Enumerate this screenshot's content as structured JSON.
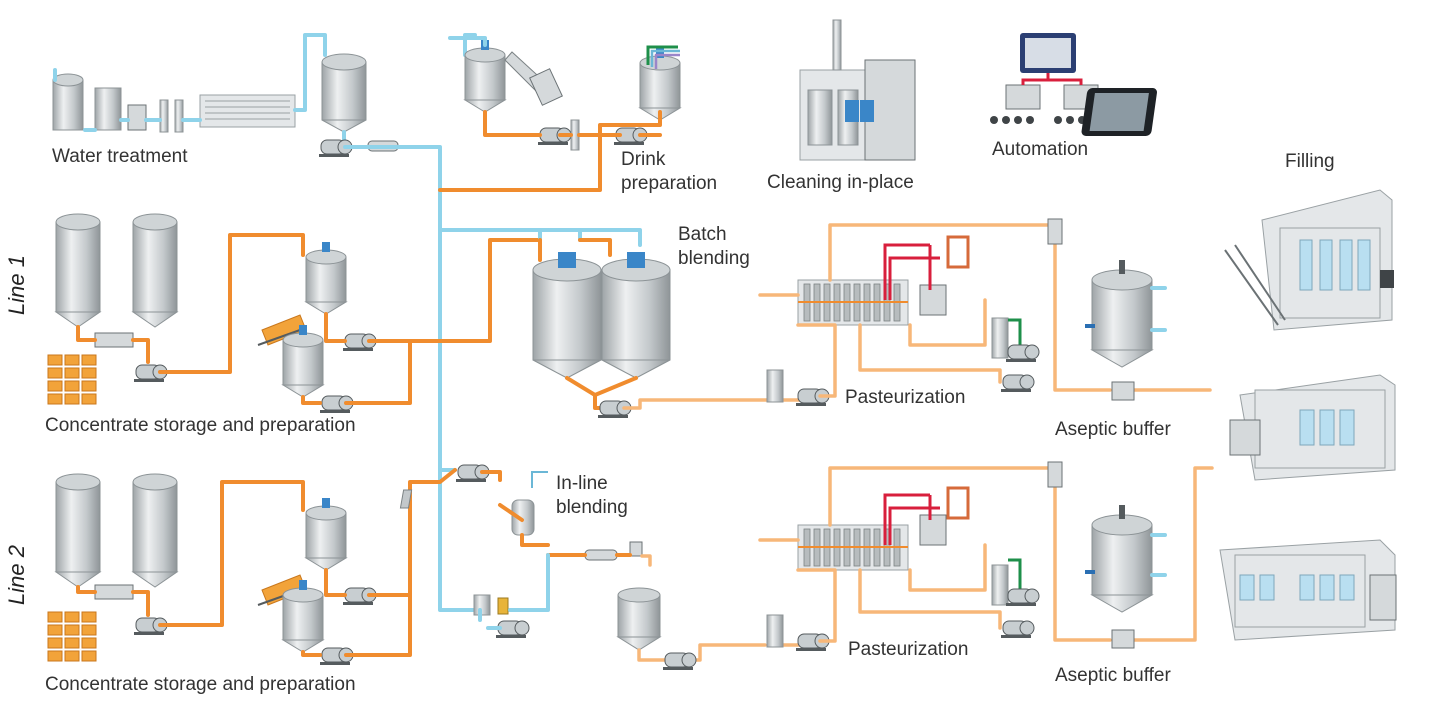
{
  "labels": {
    "water_treatment": "Water treatment",
    "drink_preparation_1": "Drink",
    "drink_preparation_2": "preparation",
    "cleaning_in_place": "Cleaning in-place",
    "automation": "Automation",
    "filling": "Filling",
    "line_1": "Line 1",
    "line_2": "Line 2",
    "batch_blending_1": "Batch",
    "batch_blending_2": "blending",
    "inline_blending_1": "In-line",
    "inline_blending_2": "blending",
    "concentrate_line1": "Concentrate storage and preparation",
    "concentrate_line2": "Concentrate storage and preparation",
    "pasteurization_line1": "Pasteurization",
    "pasteurization_line2": "Pasteurization",
    "aseptic_buffer_line1": "Aseptic buffer",
    "aseptic_buffer_line2": "Aseptic buffer"
  },
  "colors": {
    "product_pipe": "#f08c2e",
    "product_pipe_light": "#f7b779",
    "water_pipe": "#8fd3ea",
    "hot_water_pipe": "#d81f3c",
    "cooling_pipe": "#1e8f4a",
    "stainless_steel": "#c3c8cb"
  },
  "icons": [
    "tank-icon",
    "pump-icon",
    "drum-icon",
    "heat-exchanger-icon",
    "filling-machine-icon",
    "tablet-icon",
    "plc-cabinet-icon"
  ]
}
